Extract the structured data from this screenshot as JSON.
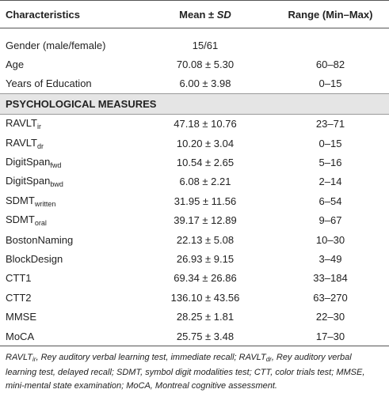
{
  "table": {
    "header": [
      "Characteristics",
      {
        "text": "Mean ± ",
        "italic": "SD"
      },
      "Range (Min–Max)"
    ],
    "rows": [
      [
        {
          "text": "Gender (male/female)"
        },
        "15/61",
        ""
      ],
      [
        {
          "text": "Age"
        },
        "70.08 ± 5.30",
        "60–82"
      ],
      [
        {
          "text": "Years of Education"
        },
        "6.00 ± 3.98",
        "0–15"
      ],
      [
        {
          "section": "PSYCHOLOGICAL MEASURES"
        }
      ],
      [
        {
          "text": "RAVLT",
          "sub": "ir"
        },
        "47.18 ± 10.76",
        "23–71"
      ],
      [
        {
          "text": "RAVLT",
          "sub": "dr"
        },
        "10.20 ± 3.04",
        "0–15"
      ],
      [
        {
          "text": "DigitSpan",
          "sub": "fwd"
        },
        "10.54 ± 2.65",
        "5–16"
      ],
      [
        {
          "text": "DigitSpan",
          "sub": "bwd"
        },
        "6.08 ± 2.21",
        "2–14"
      ],
      [
        {
          "text": "SDMT",
          "sub": "written"
        },
        "31.95 ± 11.56",
        "6–54"
      ],
      [
        {
          "text": "SDMT",
          "sub": "oral"
        },
        "39.17 ± 12.89",
        "9–67"
      ],
      [
        {
          "text": "BostonNaming"
        },
        "22.13 ± 5.08",
        "10–30"
      ],
      [
        {
          "text": "BlockDesign"
        },
        "26.93 ± 9.15",
        "3–49"
      ],
      [
        {
          "text": "CTT1"
        },
        "69.34 ± 26.86",
        "33–184"
      ],
      [
        {
          "text": "CTT2"
        },
        "136.10 ± 43.56",
        "63–270"
      ],
      [
        {
          "text": "MMSE"
        },
        "28.25 ± 1.81",
        "22–30"
      ],
      [
        {
          "text": "MoCA"
        },
        "25.75 ± 3.48",
        "17–30"
      ]
    ]
  },
  "footnote": [
    {
      "text": "RAVLT"
    },
    {
      "sub": "ir"
    },
    {
      "text": ", Rey auditory verbal learning test, immediate recall; RAVLT"
    },
    {
      "sub": "dr"
    },
    {
      "text": ", Rey auditory verbal learning test, delayed recall; SDMT, symbol digit modalities test; CTT, color trials test; MMSE, mini-mental state examination; MoCA, Montreal cognitive assessment."
    }
  ]
}
